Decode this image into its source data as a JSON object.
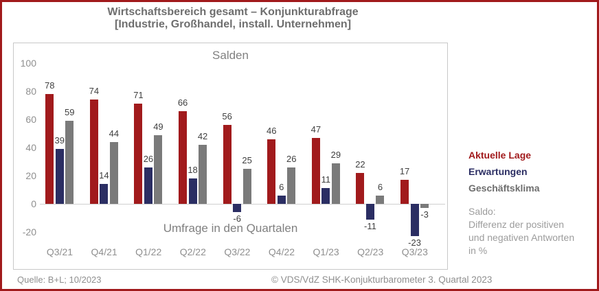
{
  "page": {
    "title_line1": "Wirtschaftsbereich gesamt – Konjunkturabfrage",
    "title_line2": "[Industrie, Großhandel, install. Unternehmen]"
  },
  "chart_data": {
    "type": "bar",
    "title": "Salden",
    "xlabel": "Umfrage in den Quartalen",
    "ylabel": "",
    "categories": [
      "Q3/21",
      "Q4/21",
      "Q1/22",
      "Q2/22",
      "Q3/22",
      "Q4/22",
      "Q1/23",
      "Q2/23",
      "Q3/23"
    ],
    "series": [
      {
        "name": "Aktuelle Lage",
        "color": "#A11A1C",
        "values": [
          78,
          74,
          71,
          66,
          56,
          46,
          47,
          22,
          17
        ]
      },
      {
        "name": "Erwartungen",
        "color": "#2B2E63",
        "values": [
          39,
          14,
          26,
          18,
          -6,
          6,
          11,
          -11,
          -23
        ]
      },
      {
        "name": "Geschäftsklima",
        "color": "#7A7A7A",
        "values": [
          59,
          44,
          49,
          42,
          25,
          26,
          29,
          6,
          -3
        ]
      }
    ],
    "yticks": [
      100,
      80,
      60,
      40,
      20,
      0,
      -20
    ],
    "ylim": [
      -30,
      105
    ],
    "grid": false,
    "value_labels": true,
    "legend_position": "right-outside"
  },
  "legend": {
    "items": [
      {
        "label": "Aktuelle Lage",
        "color": "#A11A1C"
      },
      {
        "label": "Erwartungen",
        "color": "#2B2E63"
      },
      {
        "label": "Geschäftsklima",
        "color": "#6E6E6E"
      }
    ],
    "note": "Saldo:\nDifferenz der positiven\nund negativen Antworten\nin %"
  },
  "footer": {
    "source": "Quelle: B+L; 10/2023",
    "copyright": "© VDS/VdZ SHK-Konjukturbarometer 3. Quartal 2023"
  },
  "colors": {
    "page_border": "#A11A1C",
    "title_text": "#6E6E6E",
    "axis_text": "#8F8F8F",
    "plot_text": "#808080",
    "value_label_text": "#3F3F3F",
    "chart_border": "#C8C8C8",
    "zero_line": "#CFCFCF"
  }
}
